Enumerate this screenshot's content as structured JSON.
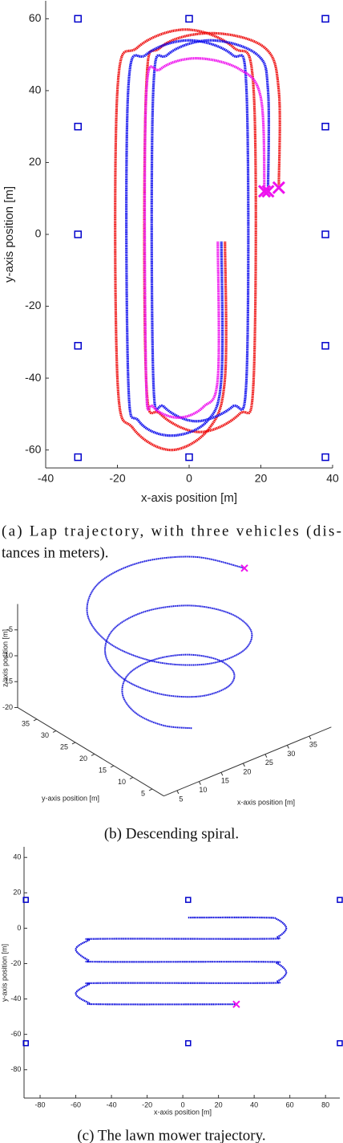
{
  "chart_data": [
    {
      "type": "line",
      "xlabel": "x-axis position [m]",
      "ylabel": "y-axis position [m]",
      "caption": [
        "(a) Lap trajectory, with three vehicles (dis-",
        "tances in meters)."
      ],
      "xlim": [
        -40,
        40
      ],
      "ylim": [
        -65,
        65
      ],
      "xticks": [
        -40,
        -20,
        0,
        20,
        40
      ],
      "yticks": [
        -60,
        -40,
        -20,
        0,
        20,
        40,
        60
      ],
      "marker_color": "#ee11ee",
      "beacons": {
        "color": "#0000cc",
        "x": [
          -31,
          0,
          38,
          -31,
          38,
          -31,
          38,
          -31,
          38,
          -31,
          0,
          38
        ],
        "y": [
          60,
          60,
          60,
          30,
          30,
          0,
          0,
          -31,
          -31,
          -62,
          -62,
          -62
        ]
      },
      "series": [
        {
          "color": "#ee1111",
          "x": [
            10,
            10,
            5.6,
            -5,
            -15.6,
            -20,
            -20,
            -14.4,
            -1,
            12.4,
            18,
            18,
            14,
            3,
            -8,
            -12,
            -12,
            -8,
            6,
            21,
            25,
            25
          ],
          "y": [
            -2,
            -40,
            -54,
            -60,
            -54,
            -40,
            40,
            52,
            57,
            52,
            40,
            -40,
            -50,
            -55,
            -50,
            -40,
            40,
            52,
            56,
            52,
            40,
            13
          ]
        },
        {
          "color": "#1111ee",
          "x": [
            9,
            9,
            5,
            -5,
            -14,
            -17,
            -17,
            -12,
            0,
            12,
            16,
            16,
            12,
            2,
            -7,
            -10,
            -10,
            -6,
            6,
            19,
            22,
            22
          ],
          "y": [
            -2,
            -40,
            -52,
            -56,
            -52,
            -40,
            40,
            50,
            54,
            50,
            40,
            -40,
            -48,
            -52,
            -48,
            -40,
            40,
            50,
            54,
            50,
            40,
            12
          ]
        },
        {
          "color": "#ee11ee",
          "x": [
            8,
            8,
            4,
            -3,
            -10,
            -12,
            -12,
            -8,
            2,
            14,
            20,
            21
          ],
          "y": [
            -2,
            -40,
            -48,
            -51,
            -48,
            -40,
            38,
            46,
            49,
            46,
            38,
            12
          ]
        }
      ]
    },
    {
      "type": "line3d",
      "xlabel": "x-axis position [m]",
      "ylabel": "y-axis position [m]",
      "zlabel": "z-axis position [m]",
      "caption": [
        "(b) Descending spiral."
      ],
      "xlim": [
        2,
        40
      ],
      "ylim": [
        2,
        40
      ],
      "zlim": [
        -20,
        0
      ],
      "xticks": [
        5,
        10,
        15,
        20,
        25,
        30,
        35
      ],
      "yticks": [
        5,
        10,
        15,
        20,
        25,
        30,
        35
      ],
      "zticks": [
        -5,
        -10,
        -15,
        -20
      ],
      "marker_color": "#ee11ee",
      "series": [
        {
          "color": "#1111dd",
          "x": [
            36.0,
            32.7,
            24.8,
            15.3,
            8.0,
            5.5,
            8.5,
            15.7,
            24.2,
            30.8,
            33.0,
            30.3,
            23.8,
            16.3,
            10.5,
            8.5,
            10.9,
            16.6,
            23.3,
            28.3,
            30.0,
            27.8,
            22.9,
            17.2,
            12.9,
            11.5,
            13.4,
            17.6
          ],
          "y": [
            20.0,
            29.2,
            34.6,
            34.4,
            28.7,
            20.0,
            11.7,
            6.8,
            7.1,
            12.2,
            20.0,
            27.5,
            31.8,
            31.5,
            26.9,
            20.0,
            13.4,
            9.6,
            9.9,
            13.9,
            20.0,
            25.7,
            28.9,
            28.7,
            25.2,
            20.0,
            15.2,
            12.5
          ],
          "z": [
            4.0,
            3.2,
            2.4,
            1.7,
            0.9,
            0.1,
            -0.7,
            -1.5,
            -2.2,
            -3.0,
            -3.8,
            -4.6,
            -5.4,
            -6.1,
            -6.9,
            -7.7,
            -8.5,
            -9.3,
            -10.0,
            -10.8,
            -11.6,
            -12.4,
            -13.2,
            -13.9,
            -14.7,
            -15.5,
            -16.3,
            -17.1
          ]
        }
      ]
    },
    {
      "type": "line",
      "xlabel": "x-axis position [m]",
      "ylabel": "y-axis position [m]",
      "caption": [
        "(c) The lawn mower trajectory."
      ],
      "xlim": [
        -89,
        88
      ],
      "ylim": [
        -96,
        46
      ],
      "xticks": [
        -80,
        -60,
        -40,
        -20,
        0,
        20,
        40,
        60,
        80
      ],
      "yticks": [
        -80,
        -60,
        -40,
        -20,
        0,
        20,
        40
      ],
      "marker_color": "#ee11ee",
      "beacons": {
        "color": "#0000cc",
        "x": [
          -88,
          3,
          88,
          -88,
          3,
          88
        ],
        "y": [
          16,
          16,
          16,
          -65,
          -65,
          -65
        ]
      },
      "series": [
        {
          "color": "#1111dd",
          "x": [
            3,
            45,
            53,
            58,
            53,
            45,
            -45,
            -53,
            -60,
            -53,
            -45,
            45,
            53,
            58,
            53,
            45,
            -45,
            -53,
            -60,
            -53,
            -45,
            30
          ],
          "y": [
            6,
            6,
            5,
            0,
            -5,
            -6,
            -6,
            -7,
            -12,
            -18,
            -19,
            -19,
            -20,
            -25,
            -30,
            -31,
            -31,
            -32,
            -37,
            -42,
            -43,
            -43
          ]
        }
      ]
    }
  ]
}
